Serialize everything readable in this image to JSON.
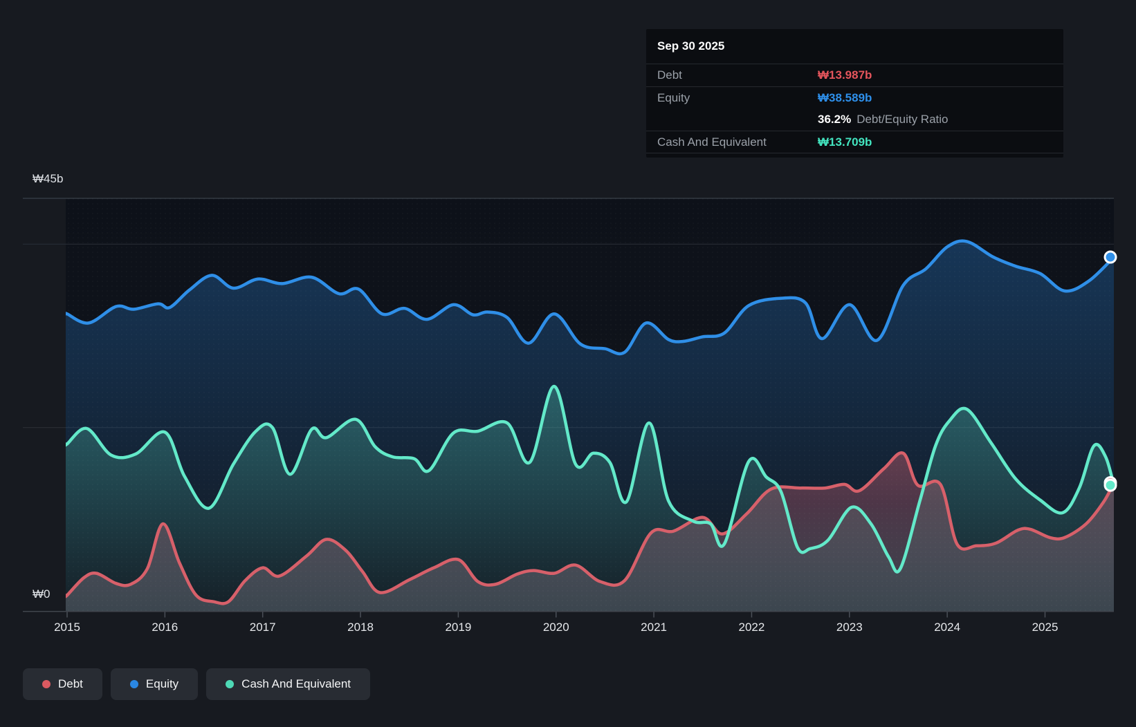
{
  "tooltip": {
    "date": "Sep 30 2025",
    "debt_label": "Debt",
    "debt_value": "₩13.987b",
    "debt_color": "#e4555c",
    "equity_label": "Equity",
    "equity_value": "₩38.589b",
    "equity_color": "#2e8fea",
    "ratio_value": "36.2%",
    "ratio_label": "Debt/Equity Ratio",
    "cash_label": "Cash And Equivalent",
    "cash_value": "₩13.709b",
    "cash_color": "#43e5c0"
  },
  "y_axis": {
    "top_label": "₩45b",
    "zero_label": "₩0"
  },
  "legend": [
    {
      "label": "Debt",
      "color": "#db5a61"
    },
    {
      "label": "Equity",
      "color": "#2a87e3"
    },
    {
      "label": "Cash And Equivalent",
      "color": "#4ed9b6"
    }
  ],
  "chart_data": {
    "type": "area",
    "x_tick_labels": [
      "2015",
      "2016",
      "2017",
      "2018",
      "2019",
      "2020",
      "2021",
      "2022",
      "2023",
      "2024",
      "2025"
    ],
    "x_range": [
      2015.0,
      2025.7
    ],
    "ylim": [
      0,
      45
    ],
    "y_unit": "₩ billions",
    "grid_values": [
      45,
      40,
      20,
      0
    ],
    "legend_position": "bottom",
    "series": [
      {
        "name": "Equity",
        "color": "#2f8fe8",
        "points": [
          [
            2015.0,
            32.4
          ],
          [
            2015.22,
            31.4
          ],
          [
            2015.5,
            33.2
          ],
          [
            2015.68,
            32.9
          ],
          [
            2015.93,
            33.5
          ],
          [
            2016.05,
            33.1
          ],
          [
            2016.25,
            35.0
          ],
          [
            2016.48,
            36.6
          ],
          [
            2016.7,
            35.2
          ],
          [
            2016.95,
            36.2
          ],
          [
            2017.2,
            35.7
          ],
          [
            2017.5,
            36.4
          ],
          [
            2017.78,
            34.6
          ],
          [
            2017.98,
            35.1
          ],
          [
            2018.22,
            32.4
          ],
          [
            2018.45,
            33.0
          ],
          [
            2018.68,
            31.8
          ],
          [
            2018.95,
            33.4
          ],
          [
            2019.15,
            32.3
          ],
          [
            2019.3,
            32.6
          ],
          [
            2019.5,
            32.0
          ],
          [
            2019.72,
            29.2
          ],
          [
            2019.98,
            32.4
          ],
          [
            2020.25,
            29.1
          ],
          [
            2020.5,
            28.6
          ],
          [
            2020.7,
            28.2
          ],
          [
            2020.92,
            31.4
          ],
          [
            2021.15,
            29.6
          ],
          [
            2021.3,
            29.4
          ],
          [
            2021.5,
            29.9
          ],
          [
            2021.72,
            30.3
          ],
          [
            2021.97,
            33.3
          ],
          [
            2022.3,
            34.1
          ],
          [
            2022.55,
            33.6
          ],
          [
            2022.72,
            29.7
          ],
          [
            2023.0,
            33.4
          ],
          [
            2023.28,
            29.5
          ],
          [
            2023.55,
            35.5
          ],
          [
            2023.78,
            37.3
          ],
          [
            2024.0,
            39.7
          ],
          [
            2024.2,
            40.3
          ],
          [
            2024.47,
            38.6
          ],
          [
            2024.7,
            37.6
          ],
          [
            2024.95,
            36.8
          ],
          [
            2025.2,
            34.9
          ],
          [
            2025.45,
            36.0
          ],
          [
            2025.7,
            38.589
          ]
        ]
      },
      {
        "name": "Cash And Equivalent",
        "color": "#63e9c9",
        "points": [
          [
            2015.0,
            18.2
          ],
          [
            2015.2,
            19.9
          ],
          [
            2015.45,
            17.0
          ],
          [
            2015.7,
            17.1
          ],
          [
            2016.0,
            19.5
          ],
          [
            2016.2,
            14.7
          ],
          [
            2016.45,
            11.2
          ],
          [
            2016.7,
            16.0
          ],
          [
            2016.93,
            19.6
          ],
          [
            2017.1,
            20.0
          ],
          [
            2017.28,
            14.9
          ],
          [
            2017.5,
            19.8
          ],
          [
            2017.65,
            18.9
          ],
          [
            2017.95,
            20.9
          ],
          [
            2018.15,
            17.9
          ],
          [
            2018.33,
            16.8
          ],
          [
            2018.55,
            16.6
          ],
          [
            2018.7,
            15.3
          ],
          [
            2018.95,
            19.4
          ],
          [
            2019.2,
            19.6
          ],
          [
            2019.5,
            20.5
          ],
          [
            2019.73,
            16.2
          ],
          [
            2019.98,
            24.5
          ],
          [
            2020.2,
            16.0
          ],
          [
            2020.38,
            17.2
          ],
          [
            2020.55,
            16.2
          ],
          [
            2020.72,
            11.9
          ],
          [
            2020.95,
            20.5
          ],
          [
            2021.15,
            12.0
          ],
          [
            2021.4,
            9.8
          ],
          [
            2021.58,
            9.5
          ],
          [
            2021.72,
            7.3
          ],
          [
            2021.97,
            16.3
          ],
          [
            2022.15,
            14.6
          ],
          [
            2022.3,
            13.0
          ],
          [
            2022.47,
            6.9
          ],
          [
            2022.6,
            6.8
          ],
          [
            2022.78,
            7.7
          ],
          [
            2023.02,
            11.3
          ],
          [
            2023.22,
            9.5
          ],
          [
            2023.4,
            5.9
          ],
          [
            2023.52,
            4.6
          ],
          [
            2023.72,
            12.0
          ],
          [
            2023.88,
            18.0
          ],
          [
            2024.02,
            20.7
          ],
          [
            2024.2,
            22.0
          ],
          [
            2024.45,
            18.3
          ],
          [
            2024.7,
            14.4
          ],
          [
            2024.95,
            12.1
          ],
          [
            2025.18,
            10.7
          ],
          [
            2025.35,
            13.4
          ],
          [
            2025.5,
            18.0
          ],
          [
            2025.62,
            16.8
          ],
          [
            2025.7,
            13.709
          ]
        ]
      },
      {
        "name": "Debt",
        "color": "#d7606a",
        "points": [
          [
            2015.0,
            1.7
          ],
          [
            2015.17,
            3.6
          ],
          [
            2015.3,
            4.1
          ],
          [
            2015.5,
            3.0
          ],
          [
            2015.65,
            2.9
          ],
          [
            2015.82,
            4.6
          ],
          [
            2015.98,
            9.5
          ],
          [
            2016.15,
            5.2
          ],
          [
            2016.32,
            1.7
          ],
          [
            2016.5,
            1.0
          ],
          [
            2016.65,
            1.0
          ],
          [
            2016.82,
            3.3
          ],
          [
            2017.0,
            4.7
          ],
          [
            2017.17,
            3.8
          ],
          [
            2017.45,
            6.0
          ],
          [
            2017.65,
            7.8
          ],
          [
            2017.85,
            6.6
          ],
          [
            2018.02,
            4.3
          ],
          [
            2018.2,
            2.0
          ],
          [
            2018.5,
            3.4
          ],
          [
            2018.75,
            4.7
          ],
          [
            2019.0,
            5.6
          ],
          [
            2019.2,
            3.2
          ],
          [
            2019.38,
            2.9
          ],
          [
            2019.6,
            4.0
          ],
          [
            2019.77,
            4.4
          ],
          [
            2019.98,
            4.1
          ],
          [
            2020.2,
            5.0
          ],
          [
            2020.45,
            3.2
          ],
          [
            2020.7,
            3.3
          ],
          [
            2020.97,
            8.5
          ],
          [
            2021.2,
            8.7
          ],
          [
            2021.5,
            10.2
          ],
          [
            2021.7,
            8.4
          ],
          [
            2021.95,
            10.6
          ],
          [
            2022.2,
            13.3
          ],
          [
            2022.5,
            13.4
          ],
          [
            2022.75,
            13.4
          ],
          [
            2022.95,
            13.8
          ],
          [
            2023.1,
            13.1
          ],
          [
            2023.35,
            15.5
          ],
          [
            2023.55,
            17.2
          ],
          [
            2023.7,
            13.7
          ],
          [
            2023.93,
            13.8
          ],
          [
            2024.1,
            7.3
          ],
          [
            2024.3,
            7.1
          ],
          [
            2024.5,
            7.4
          ],
          [
            2024.72,
            8.8
          ],
          [
            2024.85,
            8.9
          ],
          [
            2025.05,
            8.0
          ],
          [
            2025.2,
            8.0
          ],
          [
            2025.42,
            9.5
          ],
          [
            2025.6,
            11.9
          ],
          [
            2025.7,
            13.987
          ]
        ]
      }
    ],
    "end_markers": [
      {
        "series": "Equity",
        "date": "Sep 30 2025",
        "value": 38.589,
        "color": "#2f8fe8"
      },
      {
        "series": "Debt",
        "date": "Sep 30 2025",
        "value": 13.987,
        "color": "#d7606a"
      },
      {
        "series": "Cash And Equivalent",
        "date": "Sep 30 2025",
        "value": 13.709,
        "color": "#63e9c9"
      }
    ]
  }
}
